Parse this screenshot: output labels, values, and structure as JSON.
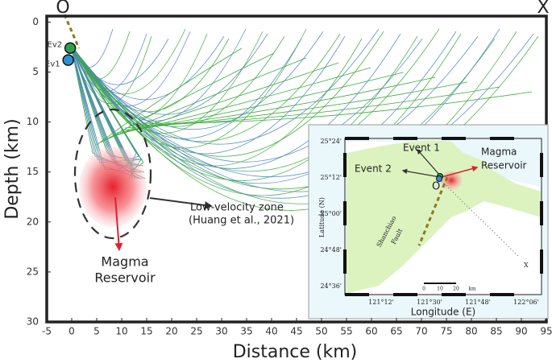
{
  "chart_data": {
    "type": "scatter",
    "xlabel": "Distance  (km)",
    "ylabel": "Depth (km)",
    "xlim": [
      -5,
      95
    ],
    "ylim": [
      -0.6,
      30
    ],
    "y_inverted": true,
    "xticks": [
      -5,
      0,
      5,
      10,
      15,
      20,
      25,
      30,
      35,
      40,
      45,
      50,
      55,
      60,
      65,
      70,
      75,
      80,
      85,
      90,
      95
    ],
    "yticks": [
      0,
      5,
      10,
      15,
      20,
      25,
      30
    ],
    "series": [
      {
        "name": "Ev2",
        "color": "#2e9e4f",
        "x": [
          -0.3
        ],
        "values": [
          2.6
        ]
      },
      {
        "name": "Ev1",
        "color": "#2f8fd0",
        "x": [
          -0.7
        ],
        "values": [
          3.8
        ]
      }
    ],
    "annotations": {
      "origin": "O",
      "end": "X",
      "lvz": "Low-velocity zone",
      "lvz_ref": "(Huang et al., 2021)",
      "magma": "Magma",
      "reservoir": "Reservoir"
    },
    "inset": {
      "lat_labels": [
        "25°24'",
        "25°12'",
        "25°00'",
        "24°48'",
        "24°36'"
      ],
      "lon_labels": [
        "121°12'",
        "121°30'",
        "121°48'",
        "122°06'"
      ],
      "ylabel": "Latitude (N)",
      "xlabel": "Longitude (E)",
      "event1": "Event 1",
      "event2": "Event 2",
      "magma": "Magma",
      "reservoir": "Reservoir",
      "origin": "O",
      "end": "X",
      "fault1": "Shanchiao",
      "fault2": "Fault",
      "scale": [
        "0",
        "10",
        "20",
        "km"
      ]
    }
  }
}
